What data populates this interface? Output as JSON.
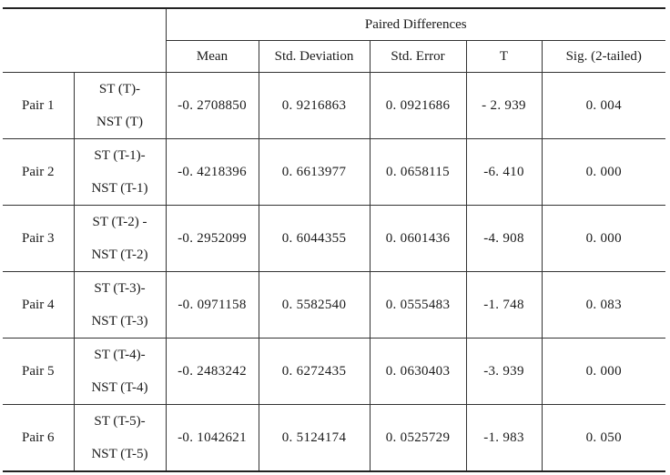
{
  "table": {
    "group_header": "Paired Differences",
    "columns": [
      "Mean",
      "Std. Deviation",
      "Std. Error",
      "T",
      "Sig. (2-tailed)"
    ],
    "rows": [
      {
        "pair": "Pair 1",
        "var_top": "ST (T)-",
        "var_bottom": "NST (T)",
        "mean": "-0. 2708850",
        "std_dev": "0. 9216863",
        "std_err": "0. 0921686",
        "t": "- 2. 939",
        "sig": "0. 004"
      },
      {
        "pair": "Pair 2",
        "var_top": "ST (T-1)-",
        "var_bottom": "NST (T-1)",
        "mean": "-0. 4218396",
        "std_dev": "0. 6613977",
        "std_err": "0. 0658115",
        "t": "-6. 410",
        "sig": "0. 000"
      },
      {
        "pair": "Pair 3",
        "var_top": "ST (T-2) -",
        "var_bottom": "NST (T-2)",
        "mean": "-0. 2952099",
        "std_dev": "0. 6044355",
        "std_err": "0. 0601436",
        "t": "-4. 908",
        "sig": "0. 000"
      },
      {
        "pair": "Pair 4",
        "var_top": "ST (T-3)-",
        "var_bottom": "NST (T-3)",
        "mean": "-0. 0971158",
        "std_dev": "0. 5582540",
        "std_err": "0. 0555483",
        "t": "-1. 748",
        "sig": "0. 083"
      },
      {
        "pair": "Pair 5",
        "var_top": "ST (T-4)-",
        "var_bottom": "NST (T-4)",
        "mean": "-0. 2483242",
        "std_dev": "0. 6272435",
        "std_err": "0. 0630403",
        "t": "-3. 939",
        "sig": "0. 000"
      },
      {
        "pair": "Pair 6",
        "var_top": "ST (T-5)-",
        "var_bottom": "NST (T-5)",
        "mean": "-0. 1042621",
        "std_dev": "0. 5124174",
        "std_err": "0. 0525729",
        "t": "-1. 983",
        "sig": "0. 050"
      }
    ]
  }
}
